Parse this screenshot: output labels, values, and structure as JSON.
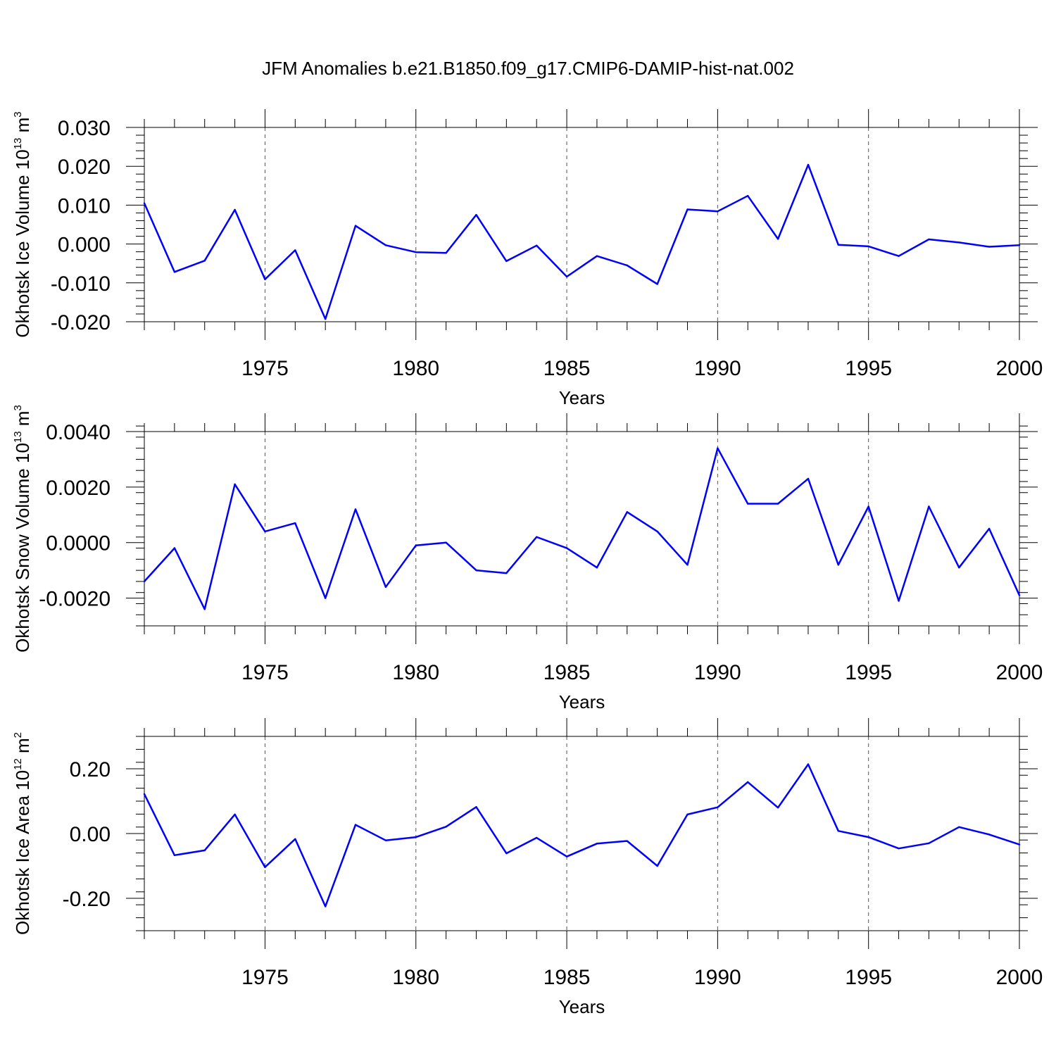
{
  "figure": {
    "title": "JFM Anomalies b.e21.B1850.f09_g17.CMIP6-DAMIP-hist-nat.002"
  },
  "chart_data": [
    {
      "type": "line",
      "title": "",
      "xlabel": "Years",
      "ylabel": "Okhotsk Ice Volume 10",
      "ylabel_exp": "13",
      "ylabel_unit": " m",
      "ylabel_unit_exp": "3",
      "xlim": [
        1971,
        2000
      ],
      "ylim": [
        -0.02,
        0.03
      ],
      "xticks": [
        1975,
        1980,
        1985,
        1990,
        1995,
        2000
      ],
      "yticks": [
        {
          "value": -0.02,
          "label": "-0.020"
        },
        {
          "value": -0.01,
          "label": "-0.010"
        },
        {
          "value": 0.0,
          "label": "0.000"
        },
        {
          "value": 0.01,
          "label": "0.010"
        },
        {
          "value": 0.02,
          "label": "0.020"
        },
        {
          "value": 0.03,
          "label": "0.030"
        }
      ],
      "grid": "x-dashed",
      "color": "#0000ff",
      "x": [
        1971,
        1972,
        1973,
        1974,
        1975,
        1976,
        1977,
        1978,
        1979,
        1980,
        1981,
        1982,
        1983,
        1984,
        1985,
        1986,
        1987,
        1988,
        1989,
        1990,
        1991,
        1992,
        1993,
        1994,
        1995,
        1996,
        1997,
        1998,
        1999,
        2000
      ],
      "values": [
        0.0105,
        -0.0072,
        -0.0043,
        0.0088,
        -0.0091,
        -0.0016,
        -0.0193,
        0.0047,
        -0.0003,
        -0.0021,
        -0.0023,
        0.0075,
        -0.0044,
        -0.0004,
        -0.0084,
        -0.0031,
        -0.0055,
        -0.0103,
        0.0089,
        0.0084,
        0.0124,
        0.0013,
        0.0204,
        -0.0002,
        -0.0006,
        -0.0031,
        0.0012,
        0.0004,
        -0.0007,
        -0.0003
      ]
    },
    {
      "type": "line",
      "title": "",
      "xlabel": "Years",
      "ylabel": "Okhotsk Snow Volume 10",
      "ylabel_exp": "13",
      "ylabel_unit": " m",
      "ylabel_unit_exp": "3",
      "xlim": [
        1971,
        2000
      ],
      "ylim": [
        -0.003,
        0.004
      ],
      "xticks": [
        1975,
        1980,
        1985,
        1990,
        1995,
        2000
      ],
      "yticks": [
        {
          "value": -0.002,
          "label": "-0.0020"
        },
        {
          "value": 0.0,
          "label": "0.0000"
        },
        {
          "value": 0.002,
          "label": "0.0020"
        },
        {
          "value": 0.004,
          "label": "0.0040"
        }
      ],
      "grid": "x-dashed",
      "color": "#0000ff",
      "x": [
        1971,
        1972,
        1973,
        1974,
        1975,
        1976,
        1977,
        1978,
        1979,
        1980,
        1981,
        1982,
        1983,
        1984,
        1985,
        1986,
        1987,
        1988,
        1989,
        1990,
        1991,
        1992,
        1993,
        1994,
        1995,
        1996,
        1997,
        1998,
        1999,
        2000
      ],
      "values": [
        -0.0014,
        -0.0002,
        -0.0024,
        0.0021,
        0.0004,
        0.0007,
        -0.002,
        0.0012,
        -0.0016,
        -0.0001,
        0.0,
        -0.001,
        -0.0011,
        0.0002,
        -0.0002,
        -0.0009,
        0.0011,
        0.0004,
        -0.0008,
        0.0034,
        0.0014,
        0.0014,
        0.0023,
        -0.0008,
        0.0013,
        -0.0021,
        0.0013,
        -0.0009,
        0.0005,
        -0.0019
      ]
    },
    {
      "type": "line",
      "title": "",
      "xlabel": "Years",
      "ylabel": "Okhotsk Ice Area 10",
      "ylabel_exp": "12",
      "ylabel_unit": " m",
      "ylabel_unit_exp": "2",
      "xlim": [
        1971,
        2000
      ],
      "ylim": [
        -0.3,
        0.3
      ],
      "xticks": [
        1975,
        1980,
        1985,
        1990,
        1995,
        2000
      ],
      "yticks": [
        {
          "value": -0.2,
          "label": "-0.20"
        },
        {
          "value": 0.0,
          "label": "0.00"
        },
        {
          "value": 0.2,
          "label": "0.20"
        }
      ],
      "grid": "x-dashed",
      "color": "#0000ff",
      "x": [
        1971,
        1972,
        1973,
        1974,
        1975,
        1976,
        1977,
        1978,
        1979,
        1980,
        1981,
        1982,
        1983,
        1984,
        1985,
        1986,
        1987,
        1988,
        1989,
        1990,
        1991,
        1992,
        1993,
        1994,
        1995,
        1996,
        1997,
        1998,
        1999,
        2000
      ],
      "values": [
        0.122,
        -0.067,
        -0.052,
        0.059,
        -0.104,
        -0.017,
        -0.225,
        0.027,
        -0.021,
        -0.011,
        0.021,
        0.082,
        -0.061,
        -0.013,
        -0.071,
        -0.031,
        -0.023,
        -0.1,
        0.059,
        0.081,
        0.159,
        0.08,
        0.214,
        0.008,
        -0.011,
        -0.046,
        -0.03,
        0.02,
        -0.003,
        -0.034
      ]
    }
  ]
}
